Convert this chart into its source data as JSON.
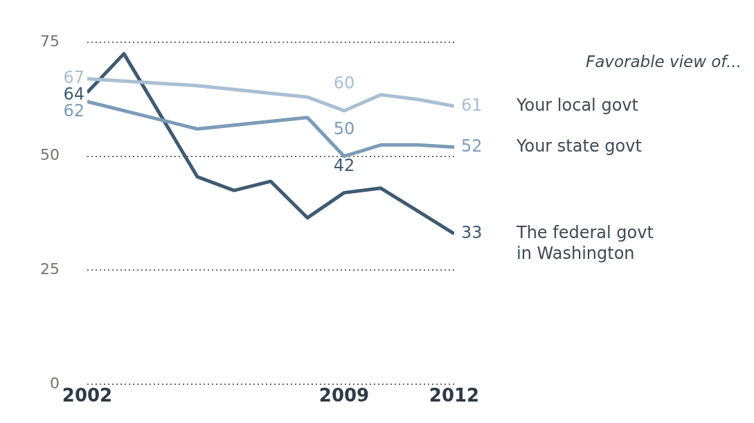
{
  "chart_data": {
    "type": "line",
    "legend_title": "Favorable view of...",
    "xlim": [
      2002,
      2012
    ],
    "xticks": [
      2002,
      2009,
      2012
    ],
    "ylim": [
      0,
      75
    ],
    "yticks": [
      0,
      25,
      50,
      75
    ],
    "grid": "y",
    "line_style": "solid",
    "marker": "none",
    "series": [
      {
        "name": "Your local govt",
        "color": "#a9bfd3",
        "x": [
          2002,
          2005,
          2008,
          2009,
          2010,
          2011,
          2012
        ],
        "values": [
          67,
          65.5,
          63,
          60,
          63.5,
          62.5,
          61
        ],
        "value_labels": [
          "67",
          null,
          null,
          "60",
          null,
          null,
          "61"
        ]
      },
      {
        "name": "Your state govt",
        "color": "#7b9cb8",
        "x": [
          2002,
          2005,
          2008,
          2009,
          2010,
          2011,
          2012
        ],
        "values": [
          62,
          56,
          58.5,
          50,
          52.5,
          52.5,
          52
        ],
        "value_labels": [
          "62",
          null,
          null,
          "50",
          null,
          null,
          "52"
        ]
      },
      {
        "name": "The federal govt\nin Washington",
        "color": "#3e5b72",
        "x": [
          2002,
          2003,
          2005,
          2006,
          2007,
          2008,
          2009,
          2010,
          2011,
          2012
        ],
        "values": [
          64,
          72.5,
          45.5,
          42.5,
          44.5,
          36.5,
          42,
          43,
          38,
          33
        ],
        "value_labels": [
          "64",
          null,
          null,
          null,
          null,
          null,
          "42",
          null,
          null,
          "33"
        ]
      }
    ]
  }
}
